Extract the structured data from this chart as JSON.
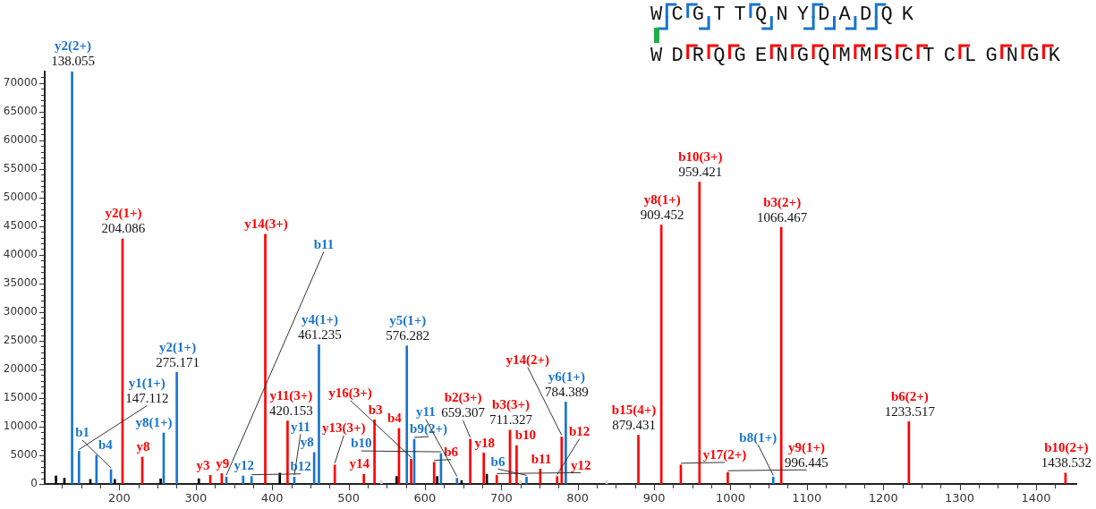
{
  "chart_data": {
    "type": "bar",
    "grid": false,
    "legend": false,
    "xlim": [
      115,
      1440
    ],
    "xticks": [
      {
        "value": 125,
        "label": null
      },
      {
        "value": 150,
        "label": null
      },
      {
        "value": 175,
        "label": null
      },
      200,
      {
        "value": 225,
        "label": null
      },
      {
        "value": 250,
        "label": null
      },
      {
        "value": 275,
        "label": null
      },
      300,
      {
        "value": 325,
        "label": null
      },
      {
        "value": 350,
        "label": null
      },
      {
        "value": 375,
        "label": null
      },
      400,
      {
        "value": 425,
        "label": null
      },
      {
        "value": 450,
        "label": null
      },
      {
        "value": 475,
        "label": null
      },
      500,
      {
        "value": 525,
        "label": null
      },
      {
        "value": 550,
        "label": null
      },
      {
        "value": 575,
        "label": null
      },
      600,
      {
        "value": 625,
        "label": null
      },
      {
        "value": 650,
        "label": null
      },
      {
        "value": 675,
        "label": null
      },
      700,
      {
        "value": 725,
        "label": null
      },
      {
        "value": 750,
        "label": null
      },
      {
        "value": 775,
        "label": null
      },
      800,
      {
        "value": 825,
        "label": null
      },
      {
        "value": 850,
        "label": null
      },
      {
        "value": 875,
        "label": null
      },
      900,
      {
        "value": 925,
        "label": null
      },
      {
        "value": 950,
        "label": null
      },
      {
        "value": 975,
        "label": null
      },
      1000,
      {
        "value": 1025,
        "label": null
      },
      {
        "value": 1050,
        "label": null
      },
      {
        "value": 1075,
        "label": null
      },
      1100,
      {
        "value": 1125,
        "label": null
      },
      {
        "value": 1150,
        "label": null
      },
      {
        "value": 1175,
        "label": null
      },
      1200,
      {
        "value": 1225,
        "label": null
      },
      {
        "value": 1250,
        "label": null
      },
      {
        "value": 1275,
        "label": null
      },
      1300,
      {
        "value": 1325,
        "label": null
      },
      {
        "value": 1350,
        "label": null
      },
      {
        "value": 1375,
        "label": null
      },
      1400,
      {
        "value": 1425,
        "label": null
      }
    ],
    "ylim": [
      0,
      72000
    ],
    "yticks": [
      0,
      {
        "value": 1000,
        "label": null
      },
      {
        "value": 2000,
        "label": null
      },
      {
        "value": 3000,
        "label": null
      },
      {
        "value": 4000,
        "label": null
      },
      5000,
      {
        "value": 6000,
        "label": null
      },
      {
        "value": 7000,
        "label": null
      },
      {
        "value": 8000,
        "label": null
      },
      {
        "value": 9000,
        "label": null
      },
      10000,
      {
        "value": 11000,
        "label": null
      },
      {
        "value": 12000,
        "label": null
      },
      {
        "value": 13000,
        "label": null
      },
      {
        "value": 14000,
        "label": null
      },
      15000,
      {
        "value": 16000,
        "label": null
      },
      {
        "value": 17000,
        "label": null
      },
      {
        "value": 18000,
        "label": null
      },
      {
        "value": 19000,
        "label": null
      },
      20000,
      {
        "value": 21000,
        "label": null
      },
      {
        "value": 22000,
        "label": null
      },
      {
        "value": 23000,
        "label": null
      },
      {
        "value": 24000,
        "label": null
      },
      25000,
      {
        "value": 26000,
        "label": null
      },
      {
        "value": 27000,
        "label": null
      },
      {
        "value": 28000,
        "label": null
      },
      {
        "value": 29000,
        "label": null
      },
      30000,
      {
        "value": 31000,
        "label": null
      },
      {
        "value": 32000,
        "label": null
      },
      {
        "value": 33000,
        "label": null
      },
      {
        "value": 34000,
        "label": null
      },
      35000,
      {
        "value": 36000,
        "label": null
      },
      {
        "value": 37000,
        "label": null
      },
      {
        "value": 38000,
        "label": null
      },
      {
        "value": 39000,
        "label": null
      },
      40000,
      {
        "value": 41000,
        "label": null
      },
      {
        "value": 42000,
        "label": null
      },
      {
        "value": 43000,
        "label": null
      },
      {
        "value": 44000,
        "label": null
      },
      45000,
      {
        "value": 46000,
        "label": null
      },
      {
        "value": 47000,
        "label": null
      },
      {
        "value": 48000,
        "label": null
      },
      {
        "value": 49000,
        "label": null
      },
      50000,
      {
        "value": 51000,
        "label": null
      },
      {
        "value": 52000,
        "label": null
      },
      {
        "value": 53000,
        "label": null
      },
      {
        "value": 54000,
        "label": null
      },
      55000,
      {
        "value": 56000,
        "label": null
      },
      {
        "value": 57000,
        "label": null
      },
      {
        "value": 58000,
        "label": null
      },
      {
        "value": 59000,
        "label": null
      },
      60000,
      {
        "value": 61000,
        "label": null
      },
      {
        "value": 62000,
        "label": null
      },
      {
        "value": 63000,
        "label": null
      },
      {
        "value": 64000,
        "label": null
      },
      65000,
      {
        "value": 66000,
        "label": null
      },
      {
        "value": 67000,
        "label": null
      },
      {
        "value": 68000,
        "label": null
      },
      {
        "value": 69000,
        "label": null
      },
      70000,
      {
        "value": 71000,
        "label": null
      }
    ],
    "series": [
      {
        "color": "#ff0000",
        "x": [
          204.086,
          230,
          319,
          334,
          391,
          420.153,
          482,
          520,
          534,
          566,
          582,
          612,
          659.307,
          677,
          694,
          711.327,
          720,
          751,
          773,
          779,
          879.431,
          909.452,
          935,
          959.421,
          996.445,
          1066.467,
          1233.517,
          1438.532
        ],
        "values": [
          42800,
          4700,
          1500,
          1800,
          43600,
          11000,
          3300,
          1700,
          11200,
          9700,
          4300,
          3800,
          7800,
          5400,
          1500,
          9400,
          6700,
          2600,
          1300,
          8200,
          8500,
          45200,
          3300,
          52700,
          2000,
          44800,
          10900,
          1900
        ]
      },
      {
        "color": "#1874cd",
        "x": [
          138.055,
          147.112,
          170,
          189,
          258,
          275.171,
          340,
          362,
          373,
          429,
          455,
          461.235,
          576.282,
          586,
          621,
          642,
          733,
          784.389,
          1056
        ],
        "values": [
          72000,
          5700,
          5000,
          2500,
          8900,
          19500,
          1200,
          1400,
          1300,
          1200,
          5500,
          24300,
          24100,
          7800,
          5300,
          1000,
          1200,
          14300,
          1200
        ]
      },
      {
        "color": "#000000",
        "x": [
          117,
          128,
          162,
          194,
          254,
          304,
          410,
          563,
          616,
          648,
          681
        ],
        "values": [
          1400,
          1000,
          800,
          800,
          900,
          900,
          1900,
          1300,
          1300,
          600,
          1700
        ]
      },
      {
        "color": "#d3d3d3",
        "x": [
          543,
          725,
          838
        ],
        "values": [
          600,
          600,
          600
        ]
      }
    ],
    "annotations": [
      {
        "text": "y2(2+)\n138.055",
        "x": 138.055,
        "y": 72000
      },
      {
        "text": "y1(1+)\n147.112",
        "x": 147.112,
        "y": 5700
      },
      {
        "text": "b4",
        "x": 170,
        "y": 5000
      },
      {
        "text": "b1",
        "x": 189,
        "y": 2500
      },
      {
        "text": "y2(1+)\n204.086",
        "x": 204.086,
        "y": 42800
      },
      {
        "text": "y8",
        "x": 230,
        "y": 4700
      },
      {
        "text": "y8(1+)",
        "x": 258,
        "y": 8900
      },
      {
        "text": "y2(1+)\n275.171",
        "x": 275.171,
        "y": 19500
      },
      {
        "text": "y3",
        "x": 319,
        "y": 1500
      },
      {
        "text": "y9",
        "x": 334,
        "y": 1800
      },
      {
        "text": "b11",
        "x": 340,
        "y": 1200
      },
      {
        "text": "y12",
        "x": 362,
        "y": 1400
      },
      {
        "text": "b12",
        "x": 373,
        "y": 1300
      },
      {
        "text": "y14(3+)",
        "x": 391,
        "y": 43600
      },
      {
        "text": "y11(3+)\n420.153",
        "x": 420.153,
        "y": 11000
      },
      {
        "text": "y11",
        "x": 429,
        "y": 1200
      },
      {
        "text": "y8",
        "x": 455,
        "y": 5500
      },
      {
        "text": "y4(1+)\n461.235",
        "x": 461.235,
        "y": 24300
      },
      {
        "text": "y13(3+)",
        "x": 482,
        "y": 3300
      },
      {
        "text": "y14",
        "x": 520,
        "y": 1700
      },
      {
        "text": "b3",
        "x": 534,
        "y": 11200
      },
      {
        "text": "b4",
        "x": 566,
        "y": 9700
      },
      {
        "text": "y5(1+)\n576.282",
        "x": 576.282,
        "y": 24100
      },
      {
        "text": "y16(3+)",
        "x": 582,
        "y": 4300
      },
      {
        "text": "b9(2+)",
        "x": 586,
        "y": 7800
      },
      {
        "text": "b6",
        "x": 612,
        "y": 3800
      },
      {
        "text": "b10",
        "x": 621,
        "y": 5300
      },
      {
        "text": "y11",
        "x": 642,
        "y": 1000
      },
      {
        "text": "b2(3+)\n659.307",
        "x": 659.307,
        "y": 7800
      },
      {
        "text": "y18",
        "x": 677,
        "y": 5400
      },
      {
        "text": "y12",
        "x": 694,
        "y": 1500
      },
      {
        "text": "b3(3+)\n711.327",
        "x": 711.327,
        "y": 9400
      },
      {
        "text": "b10",
        "x": 720,
        "y": 6700
      },
      {
        "text": "b6",
        "x": 733,
        "y": 1200
      },
      {
        "text": "b11",
        "x": 751,
        "y": 2600
      },
      {
        "text": "b12",
        "x": 773,
        "y": 1300
      },
      {
        "text": "y14(2+)",
        "x": 779,
        "y": 8200
      },
      {
        "text": "y6(1+)\n784.389",
        "x": 784.389,
        "y": 14300
      },
      {
        "text": "b15(4+)\n879.431",
        "x": 879.431,
        "y": 8500
      },
      {
        "text": "y8(1+)\n909.452",
        "x": 909.452,
        "y": 45200
      },
      {
        "text": "y17(2+)",
        "x": 935,
        "y": 3300
      },
      {
        "text": "b10(3+)\n959.421",
        "x": 959.421,
        "y": 52700
      },
      {
        "text": "y9(1+)\n996.445",
        "x": 996.445,
        "y": 2000
      },
      {
        "text": "b8(1+)",
        "x": 1056,
        "y": 1200
      },
      {
        "text": "b3(2+)\n1066.467",
        "x": 1066.467,
        "y": 44800
      },
      {
        "text": "b6(2+)\n1233.517",
        "x": 1233.517,
        "y": 10900
      },
      {
        "text": "b10(2+)\n1438.532",
        "x": 1438.532,
        "y": 1900
      },
      "WCGTTQNYDADQK",
      "WDRQGENGQMMSCTCLGNGK"
    ]
  }
}
